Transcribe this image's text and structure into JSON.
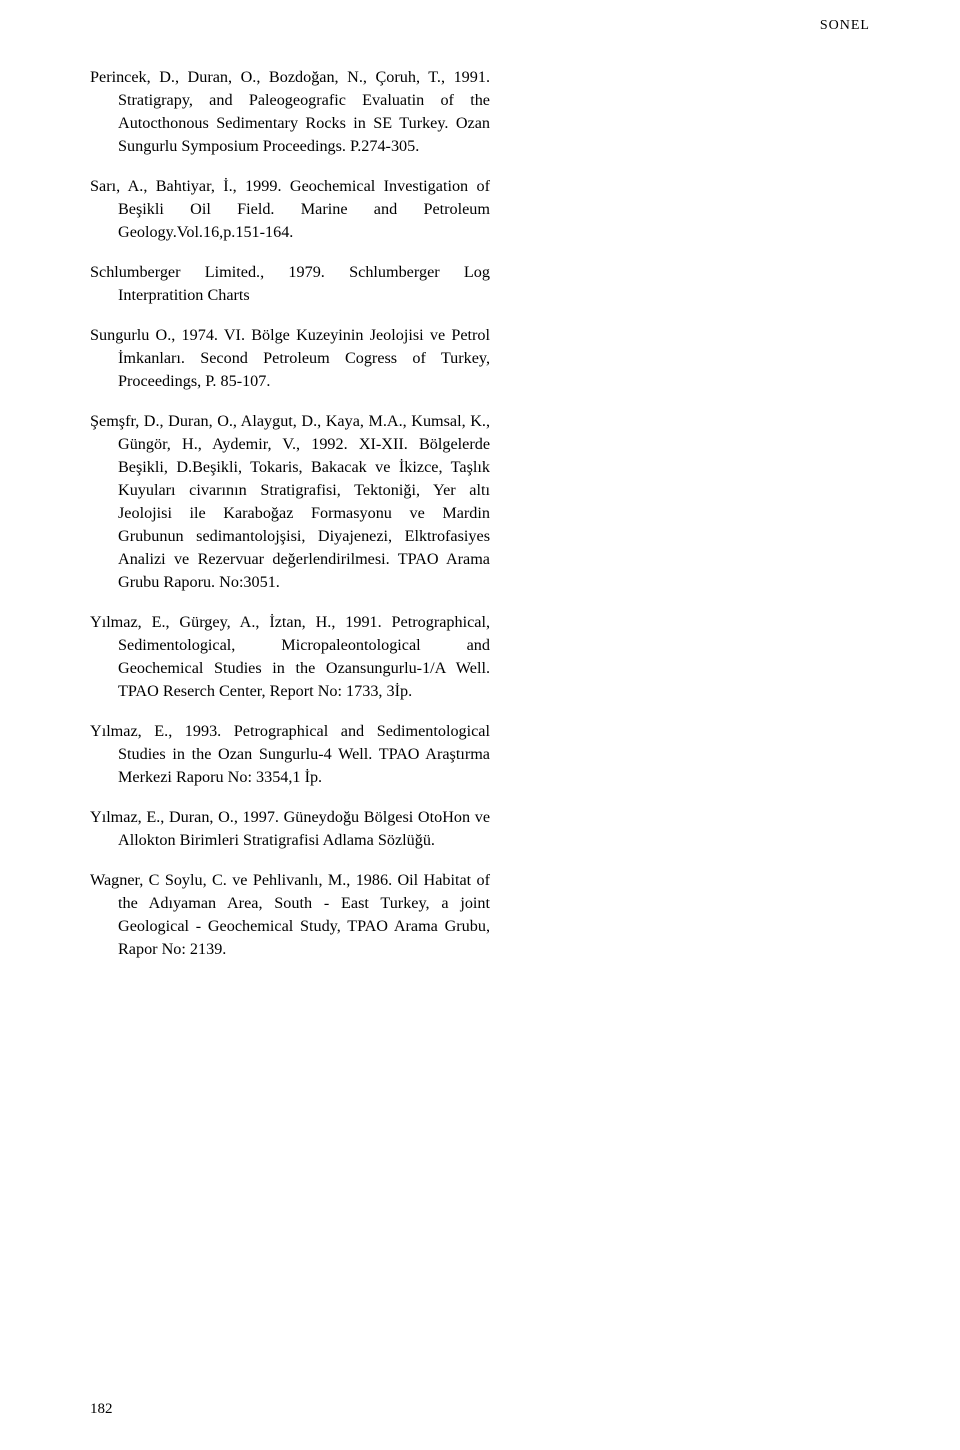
{
  "header": {
    "right": "SONEL"
  },
  "refs": [
    "Perincek, D., Duran, O., Bozdoğan, N., Çoruh, T., 1991. Stratigrapy, and Paleogeografic Evaluatin of the Autocthonous Sedimentary Rocks in SE Turkey. Ozan Sungurlu Symposium Proceedings. P.274-305.",
    "Sarı, A., Bahtiyar, İ., 1999. Geochemical Investigation of Beşikli Oil Field. Marine and Petroleum Geology.Vol.16,p.151-164.",
    "Schlumberger Limited., 1979. Schlumberger Log Interpratition Charts",
    "Sungurlu O., 1974. VI. Bölge Kuzeyinin Jeolojisi ve Petrol İmkanları. Second Petroleum Cogress of Turkey, Proceedings, P. 85-107.",
    "Şemşfr, D., Duran, O., Alaygut, D., Kaya, M.A., Kumsal, K., Güngör, H., Aydemir, V., 1992. XI-XII. Bölgelerde Beşikli, D.Beşikli, Tokaris, Bakacak ve İkizce, Taşlık Kuyuları civarının Stratigrafisi, Tektoniği, Yer altı Jeolojisi ile Karaboğaz Formasyonu ve Mardin Grubunun sedimantolojşisi, Diyajenezi, Elktrofasiyes Analizi ve Rezervuar değerlendirilmesi. TPAO Arama Grubu Raporu. No:3051.",
    "Yılmaz, E., Gürgey, A., İztan, H., 1991. Petrographical, Sedimentological, Micropaleontological and Geochemical Studies in the Ozansungurlu-1/A Well. TPAO Reserch Center, Report No: 1733, 3İp.",
    "Yılmaz, E., 1993. Petrographical and Sedimentological Studies in the Ozan Sungurlu-4 Well. TPAO Araştırma Merkezi Raporu No: 3354,1 İp.",
    "Yılmaz, E., Duran, O., 1997. Güneydoğu Bölgesi OtoHon ve Allokton Birimleri Stratigrafisi Adlama Sözlüğü.",
    "Wagner, C Soylu, C. ve Pehlivanlı, M., 1986. Oil Habitat of the Adıyaman Area, South - East Turkey, a joint Geological - Geochemical Study, TPAO Arama Grubu, Rapor No: 2139."
  ],
  "page": "182"
}
